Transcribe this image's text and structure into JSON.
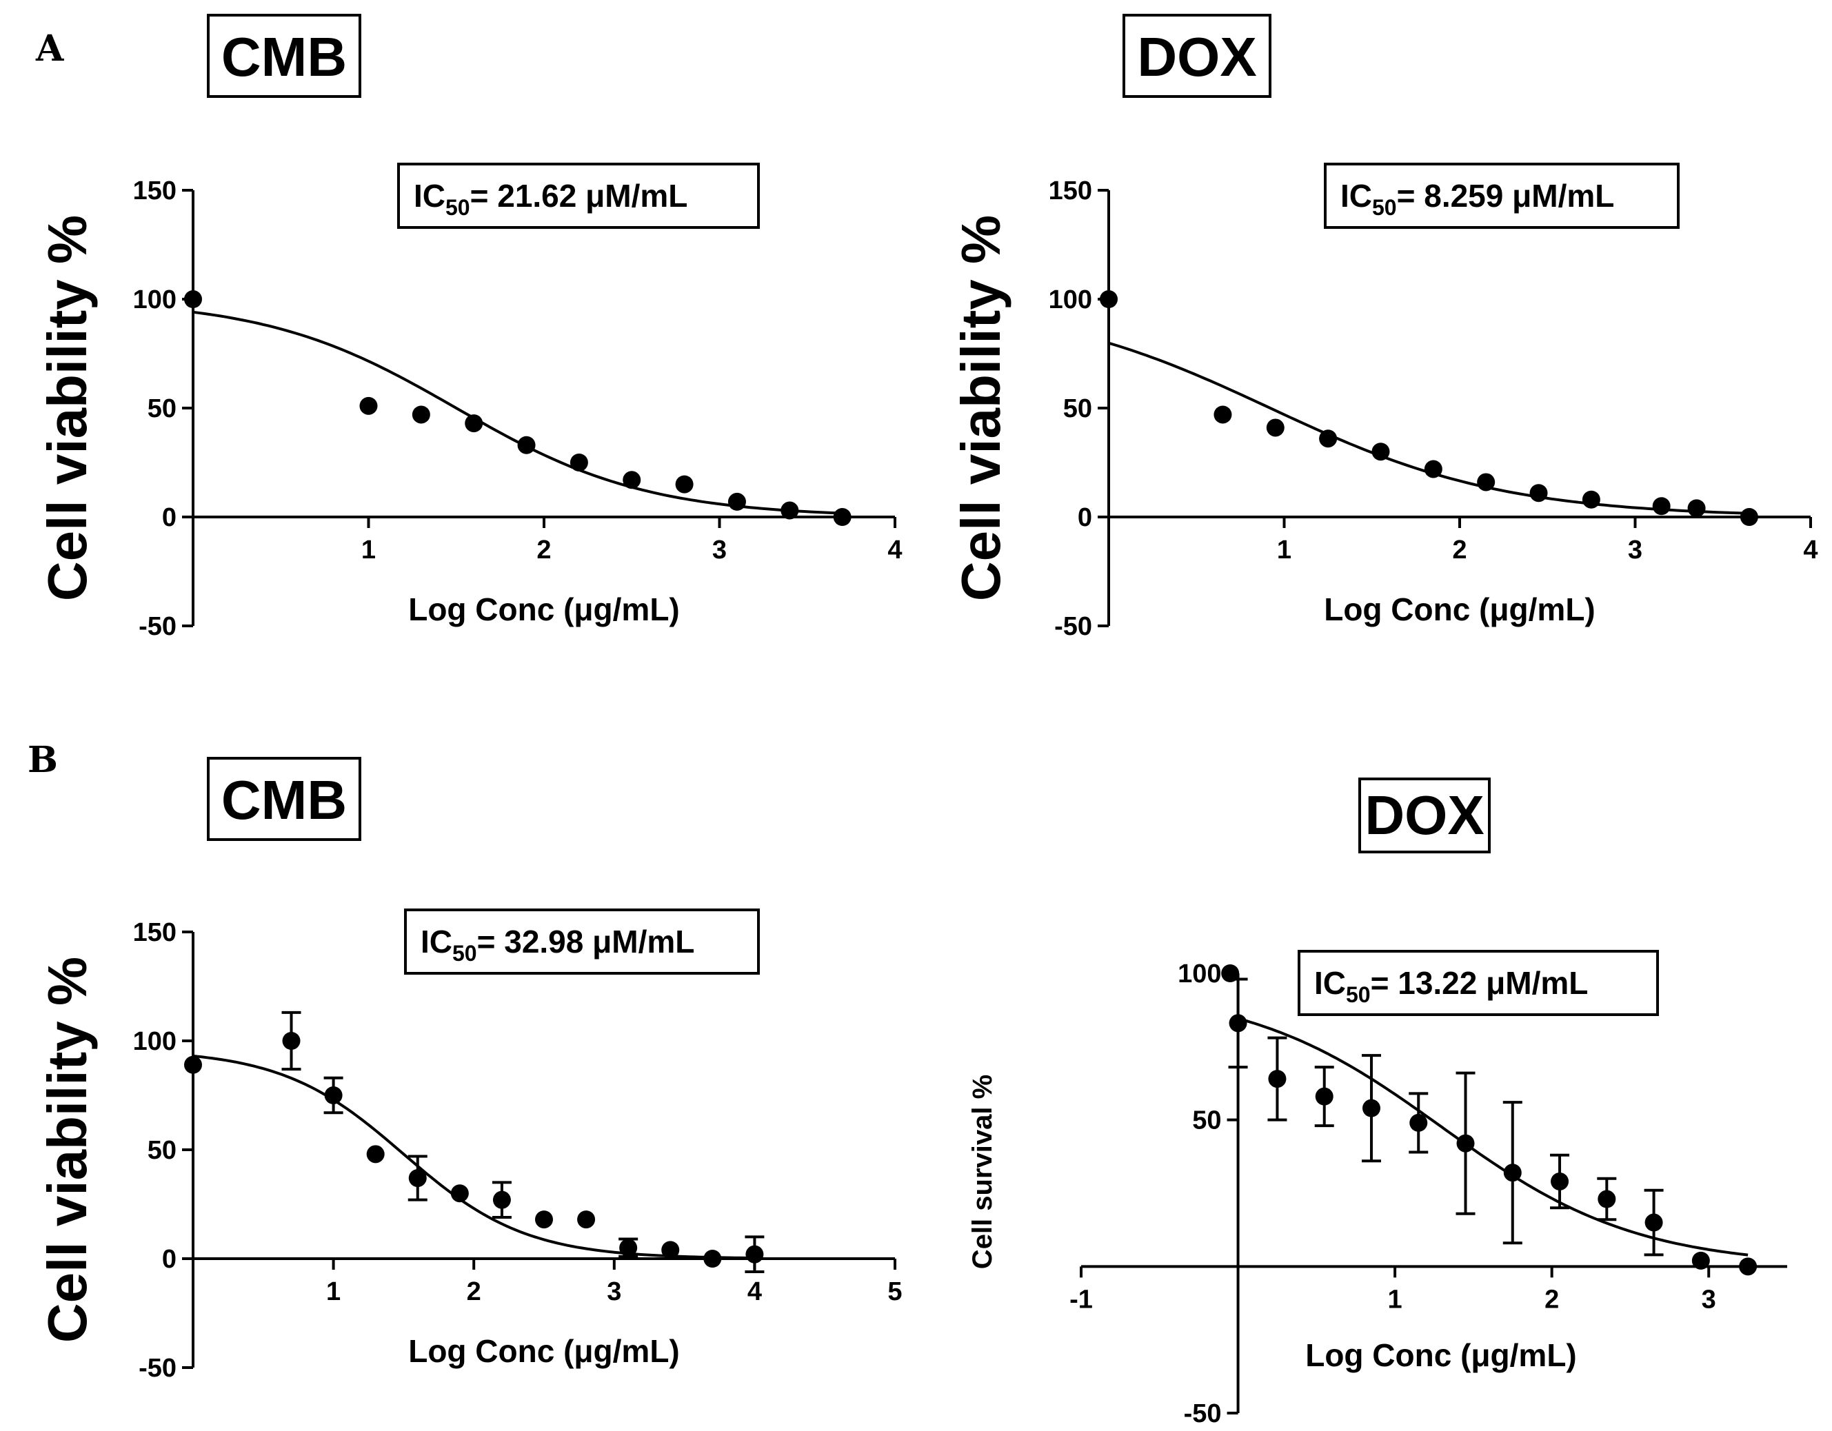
{
  "panel_letters": {
    "A": "A",
    "B": "B"
  },
  "titles": {
    "a_cmb": "CMB",
    "a_dox": "DOX",
    "b_cmb": "CMB",
    "b_dox": "DOX"
  },
  "chart_data": [
    {
      "type": "scatter",
      "title": "CMB",
      "ic50": {
        "prefix": "IC",
        "sub": "50",
        "text": "= 21.62 μM/mL"
      },
      "xlabel": "Log Conc (μg/mL)",
      "ylabel": "Cell viability %",
      "xlim": [
        0,
        4
      ],
      "ylim": [
        -50,
        150
      ],
      "xticks": [
        "1",
        "2",
        "3",
        "4"
      ],
      "yticks": [
        "-50",
        "0",
        "50",
        "100",
        "150"
      ],
      "x": [
        0,
        1.0,
        1.3,
        1.6,
        1.9,
        2.2,
        2.5,
        2.8,
        3.1,
        3.4,
        3.7
      ],
      "y": [
        100,
        51,
        47,
        43,
        33,
        25,
        17,
        15,
        7,
        3,
        0
      ],
      "fit": {
        "top": 100,
        "bottom": 0,
        "logIC50": 1.5,
        "hill": 0.8
      },
      "error_bars": false
    },
    {
      "type": "scatter",
      "title": "DOX",
      "ic50": {
        "prefix": "IC",
        "sub": "50",
        "text": "= 8.259 μM/mL"
      },
      "xlabel": "Log Conc (μg/mL)",
      "ylabel": "Cell viability %",
      "xlim": [
        0,
        4
      ],
      "ylim": [
        -50,
        150
      ],
      "xticks": [
        "1",
        "2",
        "3",
        "4"
      ],
      "yticks": [
        "-50",
        "0",
        "50",
        "100",
        "150"
      ],
      "x": [
        0,
        0.65,
        0.95,
        1.25,
        1.55,
        1.85,
        2.15,
        2.45,
        2.75,
        3.15,
        3.35,
        3.65
      ],
      "y": [
        100,
        47,
        41,
        36,
        30,
        22,
        16,
        11,
        8,
        5,
        4,
        0
      ],
      "fit": {
        "top": 100,
        "bottom": 0,
        "logIC50": 0.92,
        "hill": 0.65
      },
      "error_bars": false
    },
    {
      "type": "scatter",
      "title": "CMB",
      "ic50": {
        "prefix": "IC",
        "sub": "50",
        "text": "= 32.98 μM/mL"
      },
      "xlabel": "Log Conc (μg/mL)",
      "ylabel": "Cell viability %",
      "xlim": [
        0,
        5
      ],
      "ylim": [
        -50,
        150
      ],
      "xticks": [
        "1",
        "2",
        "3",
        "4",
        "5"
      ],
      "yticks": [
        "-50",
        "0",
        "50",
        "100",
        "150"
      ],
      "x": [
        0,
        0.7,
        1.0,
        1.3,
        1.6,
        1.9,
        2.2,
        2.5,
        2.8,
        3.1,
        3.4,
        3.7,
        4.0
      ],
      "y": [
        89,
        100,
        75,
        48,
        37,
        30,
        27,
        18,
        18,
        5,
        4,
        0,
        2
      ],
      "err": [
        0,
        13,
        8,
        0,
        10,
        0,
        8,
        0,
        0,
        4,
        0,
        0,
        8
      ],
      "fit": {
        "top": 96,
        "bottom": 0,
        "logIC50": 1.5,
        "hill": 1.0
      },
      "error_bars": true
    },
    {
      "type": "scatter",
      "title": "DOX",
      "ic50": {
        "prefix": "IC",
        "sub": "50",
        "text": "= 13.22 μM/mL"
      },
      "xlabel": "Log Conc (μg/mL)",
      "ylabel": "Cell survival %",
      "xlim": [
        -1,
        3.5
      ],
      "ylim": [
        -50,
        100
      ],
      "xticks": [
        "-1",
        "1",
        "2",
        "3"
      ],
      "yticks": [
        "-50",
        "50",
        "100"
      ],
      "x": [
        -0.05,
        0.0,
        0.25,
        0.55,
        0.85,
        1.15,
        1.45,
        1.75,
        2.05,
        2.35,
        2.65,
        2.95,
        3.25
      ],
      "y": [
        100,
        83,
        64,
        58,
        54,
        49,
        42,
        32,
        29,
        23,
        15,
        2,
        0
      ],
      "err": [
        0,
        15,
        14,
        10,
        18,
        10,
        24,
        24,
        9,
        7,
        11,
        0,
        0
      ],
      "fit": {
        "top": 95,
        "bottom": 0,
        "logIC50": 1.3,
        "hill": 0.7
      },
      "error_bars": true
    }
  ]
}
